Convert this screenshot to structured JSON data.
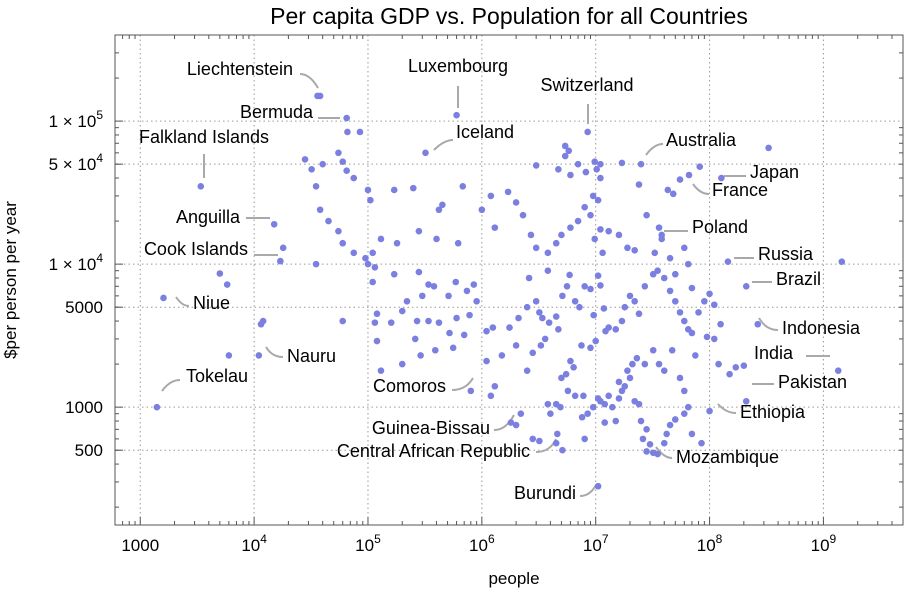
{
  "chart_data": {
    "type": "scatter",
    "title": "Per capita GDP vs. Population for all Countries",
    "xlabel": "people",
    "ylabel": "$per person per year",
    "x_scale": "log",
    "y_scale": "log",
    "xlim": [
      600,
      5000000000
    ],
    "ylim": [
      150,
      400000
    ],
    "x_ticks": [
      {
        "value": 1000,
        "label": "1000"
      },
      {
        "value": 10000,
        "label": "10^4"
      },
      {
        "value": 100000,
        "label": "10^5"
      },
      {
        "value": 1000000,
        "label": "10^6"
      },
      {
        "value": 10000000,
        "label": "10^7"
      },
      {
        "value": 100000000,
        "label": "10^8"
      },
      {
        "value": 1000000000,
        "label": "10^9"
      }
    ],
    "y_ticks": [
      {
        "value": 500,
        "label": "500"
      },
      {
        "value": 1000,
        "label": "1000"
      },
      {
        "value": 5000,
        "label": "5000"
      },
      {
        "value": 10000,
        "label": "1 × 10^4"
      },
      {
        "value": 50000,
        "label": "5 × 10^4"
      },
      {
        "value": 100000,
        "label": "1 × 10^5"
      }
    ],
    "grid": true,
    "point_color": "#7b7fe0",
    "annotations": [
      {
        "label": "Liechtenstein",
        "x": 36000,
        "y": 150000
      },
      {
        "label": "Bermuda",
        "x": 65000,
        "y": 105000
      },
      {
        "label": "Falkland Islands",
        "x": 3400,
        "y": 35000
      },
      {
        "label": "Luxembourg",
        "x": 600000,
        "y": 110000
      },
      {
        "label": "Iceland",
        "x": 320000,
        "y": 60000
      },
      {
        "label": "Switzerland",
        "x": 8500000,
        "y": 84000
      },
      {
        "label": "Australia",
        "x": 25000000,
        "y": 50000
      },
      {
        "label": "Japan",
        "x": 127000000,
        "y": 40000
      },
      {
        "label": "France",
        "x": 66000000,
        "y": 42000
      },
      {
        "label": "Poland",
        "x": 38000000,
        "y": 15000
      },
      {
        "label": "Anguilla",
        "x": 15000,
        "y": 19000
      },
      {
        "label": "Cook Islands",
        "x": 17000,
        "y": 10500
      },
      {
        "label": "Niue",
        "x": 1600,
        "y": 5800
      },
      {
        "label": "Nauru",
        "x": 11000,
        "y": 2300
      },
      {
        "label": "Tokelau",
        "x": 1400,
        "y": 1000
      },
      {
        "label": "Comoros",
        "x": 800000,
        "y": 1300
      },
      {
        "label": "Guinea-Bissau",
        "x": 1800000,
        "y": 750
      },
      {
        "label": "Central African Republic",
        "x": 4600000,
        "y": 510
      },
      {
        "label": "Burundi",
        "x": 10500000,
        "y": 280
      },
      {
        "label": "Mozambique",
        "x": 28000000,
        "y": 490
      },
      {
        "label": "Ethiopia",
        "x": 100000000,
        "y": 940
      },
      {
        "label": "Pakistan",
        "x": 210000000,
        "y": 1100
      },
      {
        "label": "India",
        "x": 1350000000,
        "y": 1800
      },
      {
        "label": "Indonesia",
        "x": 265000000,
        "y": 3800
      },
      {
        "label": "Russia",
        "x": 145000000,
        "y": 10400
      },
      {
        "label": "Brazil",
        "x": 210000000,
        "y": 7000
      }
    ],
    "points": [
      [
        1400,
        1000
      ],
      [
        1600,
        5800
      ],
      [
        5000,
        8600
      ],
      [
        5800,
        7200
      ],
      [
        6000,
        2300
      ],
      [
        11000,
        2300
      ],
      [
        11500,
        3800
      ],
      [
        12000,
        4000
      ],
      [
        15000,
        19000
      ],
      [
        17000,
        10500
      ],
      [
        18000,
        13000
      ],
      [
        38000,
        150000
      ],
      [
        36000,
        150000
      ],
      [
        65000,
        105000
      ],
      [
        66000,
        84000
      ],
      [
        85000,
        84000
      ],
      [
        3400,
        35000
      ],
      [
        28000,
        54000
      ],
      [
        32000,
        46000
      ],
      [
        35000,
        35000
      ],
      [
        40000,
        50000
      ],
      [
        38000,
        24000
      ],
      [
        45000,
        20000
      ],
      [
        55000,
        60000
      ],
      [
        60000,
        52000
      ],
      [
        65000,
        45000
      ],
      [
        75000,
        40000
      ],
      [
        100000,
        33000
      ],
      [
        105000,
        28000
      ],
      [
        170000,
        33000
      ],
      [
        250000,
        34000
      ],
      [
        320000,
        60000
      ],
      [
        600000,
        110000
      ],
      [
        680000,
        35000
      ],
      [
        420000,
        24000
      ],
      [
        450000,
        26000
      ],
      [
        55000,
        17000
      ],
      [
        60000,
        14000
      ],
      [
        75000,
        12000
      ],
      [
        95000,
        11000
      ],
      [
        35000,
        10000
      ],
      [
        100000,
        10000
      ],
      [
        115000,
        9500
      ],
      [
        170000,
        8500
      ],
      [
        280000,
        8800
      ],
      [
        110000,
        7500
      ],
      [
        340000,
        7200
      ],
      [
        380000,
        7000
      ],
      [
        590000,
        7500
      ],
      [
        510000,
        6000
      ],
      [
        740000,
        6500
      ],
      [
        850000,
        7200
      ],
      [
        900000,
        5500
      ],
      [
        300000,
        6000
      ],
      [
        220000,
        5500
      ],
      [
        200000,
        4700
      ],
      [
        120000,
        4500
      ],
      [
        115000,
        3900
      ],
      [
        160000,
        3900
      ],
      [
        270000,
        4000
      ],
      [
        340000,
        4000
      ],
      [
        420000,
        3900
      ],
      [
        520000,
        3300
      ],
      [
        600000,
        4200
      ],
      [
        780000,
        4400
      ],
      [
        1100000,
        3400
      ],
      [
        1250000,
        3600
      ],
      [
        700000,
        3200
      ],
      [
        120000,
        2900
      ],
      [
        260000,
        3000
      ],
      [
        290000,
        2300
      ],
      [
        390000,
        2500
      ],
      [
        560000,
        2600
      ],
      [
        1100000,
        2100
      ],
      [
        1500000,
        2300
      ],
      [
        200000,
        2000
      ],
      [
        60000,
        4000
      ],
      [
        130000,
        1800
      ],
      [
        1300000,
        1400
      ],
      [
        800000,
        1300
      ],
      [
        1200000,
        1200
      ],
      [
        2500000,
        1800
      ],
      [
        2800000,
        2400
      ],
      [
        3300000,
        2700
      ],
      [
        3600000,
        3000
      ],
      [
        2000000,
        2700
      ],
      [
        1750000,
        3600
      ],
      [
        2100000,
        4200
      ],
      [
        2500000,
        5000
      ],
      [
        3000000,
        5500
      ],
      [
        3400000,
        4200
      ],
      [
        3900000,
        3900
      ],
      [
        4500000,
        4300
      ],
      [
        4700000,
        3500
      ],
      [
        3200000,
        4600
      ],
      [
        2600000,
        8000
      ],
      [
        3800000,
        9000
      ],
      [
        5100000,
        6000
      ],
      [
        5600000,
        7000
      ],
      [
        5900000,
        8400
      ],
      [
        6600000,
        5500
      ],
      [
        7200000,
        5000
      ],
      [
        8000000,
        7000
      ],
      [
        9000000,
        6700
      ],
      [
        9600000,
        4400
      ],
      [
        10500000,
        8300
      ],
      [
        11000000,
        7100
      ],
      [
        11800000,
        4900
      ],
      [
        12200000,
        3400
      ],
      [
        13000000,
        3600
      ],
      [
        10000000,
        2900
      ],
      [
        9000000,
        2600
      ],
      [
        7500000,
        2700
      ],
      [
        6000000,
        2100
      ],
      [
        5500000,
        1700
      ],
      [
        5000000,
        1600
      ],
      [
        6400000,
        1900
      ],
      [
        5700000,
        1300
      ],
      [
        4900000,
        1000
      ],
      [
        4500000,
        1050
      ],
      [
        4000000,
        900
      ],
      [
        3800000,
        1050
      ],
      [
        4600000,
        650
      ],
      [
        5100000,
        500
      ],
      [
        4500000,
        560
      ],
      [
        2200000,
        900
      ],
      [
        2000000,
        750
      ],
      [
        1800000,
        780
      ],
      [
        2800000,
        600
      ],
      [
        3200000,
        580
      ],
      [
        6600000,
        1200
      ],
      [
        7800000,
        1200
      ],
      [
        8500000,
        900
      ],
      [
        9500000,
        1000
      ],
      [
        10500000,
        1150
      ],
      [
        11000000,
        1100
      ],
      [
        12000000,
        1050
      ],
      [
        13000000,
        1200
      ],
      [
        14000000,
        1000
      ],
      [
        16000000,
        1150
      ],
      [
        17000000,
        1300
      ],
      [
        18000000,
        1400
      ],
      [
        20000000,
        1600
      ],
      [
        22000000,
        1100
      ],
      [
        24000000,
        1050
      ],
      [
        25000000,
        800
      ],
      [
        28000000,
        700
      ],
      [
        30000000,
        550
      ],
      [
        32000000,
        480
      ],
      [
        35000000,
        470
      ],
      [
        40000000,
        560
      ],
      [
        42000000,
        650
      ],
      [
        45000000,
        750
      ],
      [
        50000000,
        820
      ],
      [
        60000000,
        900
      ],
      [
        70000000,
        650
      ],
      [
        85000000,
        560
      ],
      [
        100000000,
        940
      ],
      [
        28000000,
        490
      ],
      [
        26000000,
        600
      ],
      [
        10500000,
        280
      ],
      [
        12000000,
        780
      ],
      [
        15000000,
        800
      ],
      [
        8000000,
        600
      ],
      [
        7600000,
        850
      ],
      [
        16000000,
        1500
      ],
      [
        19000000,
        1800
      ],
      [
        21000000,
        2000
      ],
      [
        23000000,
        2200
      ],
      [
        27000000,
        2000
      ],
      [
        32000000,
        2500
      ],
      [
        36000000,
        2000
      ],
      [
        40000000,
        1800
      ],
      [
        47000000,
        2500
      ],
      [
        55000000,
        1600
      ],
      [
        60000000,
        1300
      ],
      [
        65000000,
        1000
      ],
      [
        75000000,
        2300
      ],
      [
        95000000,
        3100
      ],
      [
        110000000,
        3000
      ],
      [
        120000000,
        2000
      ],
      [
        150000000,
        1700
      ],
      [
        170000000,
        1900
      ],
      [
        200000000,
        1950
      ],
      [
        210000000,
        1100
      ],
      [
        265000000,
        3800
      ],
      [
        1350000000,
        1800
      ],
      [
        15000000,
        3500
      ],
      [
        17000000,
        4000
      ],
      [
        18000000,
        5000
      ],
      [
        20000000,
        6000
      ],
      [
        22000000,
        5500
      ],
      [
        24000000,
        4500
      ],
      [
        27000000,
        7000
      ],
      [
        32000000,
        8500
      ],
      [
        35000000,
        9000
      ],
      [
        40000000,
        8000
      ],
      [
        45000000,
        6500
      ],
      [
        50000000,
        5500
      ],
      [
        55000000,
        4600
      ],
      [
        60000000,
        4000
      ],
      [
        65000000,
        3500
      ],
      [
        70000000,
        3300
      ],
      [
        80000000,
        4600
      ],
      [
        90000000,
        5500
      ],
      [
        100000000,
        6200
      ],
      [
        110000000,
        5200
      ],
      [
        125000000,
        3800
      ],
      [
        145000000,
        10400
      ],
      [
        210000000,
        7000
      ],
      [
        1450000000,
        10400
      ],
      [
        33000000,
        12000
      ],
      [
        38000000,
        15000
      ],
      [
        45000000,
        11000
      ],
      [
        50000000,
        8500
      ],
      [
        65000000,
        10000
      ],
      [
        70000000,
        6800
      ],
      [
        28000000,
        22000
      ],
      [
        36000000,
        18000
      ],
      [
        38000000,
        16000
      ],
      [
        60000000,
        13000
      ],
      [
        16000000,
        16000
      ],
      [
        19000000,
        13000
      ],
      [
        22000000,
        12500
      ],
      [
        11000000,
        17500
      ],
      [
        13000000,
        17000
      ],
      [
        9800000,
        15000
      ],
      [
        11500000,
        12000
      ],
      [
        9000000,
        22000
      ],
      [
        10500000,
        28000
      ],
      [
        11000000,
        40000
      ],
      [
        9500000,
        30000
      ],
      [
        8000000,
        25000
      ],
      [
        7000000,
        20000
      ],
      [
        6000000,
        18000
      ],
      [
        5000000,
        16000
      ],
      [
        4500000,
        14000
      ],
      [
        3800000,
        12000
      ],
      [
        3000000,
        13000
      ],
      [
        2700000,
        16000
      ],
      [
        2300000,
        22000
      ],
      [
        2000000,
        27000
      ],
      [
        1700000,
        32000
      ],
      [
        1200000,
        30000
      ],
      [
        1000000,
        24000
      ],
      [
        1300000,
        18000
      ],
      [
        620000,
        14000
      ],
      [
        400000,
        15000
      ],
      [
        280000,
        17000
      ],
      [
        180000,
        14000
      ],
      [
        130000,
        15000
      ],
      [
        110000,
        12000
      ],
      [
        3000000,
        49000
      ],
      [
        4700000,
        46000
      ],
      [
        5400000,
        57000
      ],
      [
        6000000,
        42000
      ],
      [
        7000000,
        50000
      ],
      [
        8500000,
        84000
      ],
      [
        9800000,
        52000
      ],
      [
        11000000,
        50000
      ],
      [
        17000000,
        51000
      ],
      [
        25000000,
        50000
      ],
      [
        24000000,
        36000
      ],
      [
        43000000,
        33000
      ],
      [
        48000000,
        31000
      ],
      [
        55000000,
        39000
      ],
      [
        66000000,
        42000
      ],
      [
        82000000,
        48000
      ],
      [
        127000000,
        40000
      ],
      [
        330000000,
        65000
      ],
      [
        8200000,
        44000
      ],
      [
        10200000,
        46000
      ],
      [
        5400000,
        67000
      ],
      [
        5800000,
        62000
      ]
    ]
  }
}
